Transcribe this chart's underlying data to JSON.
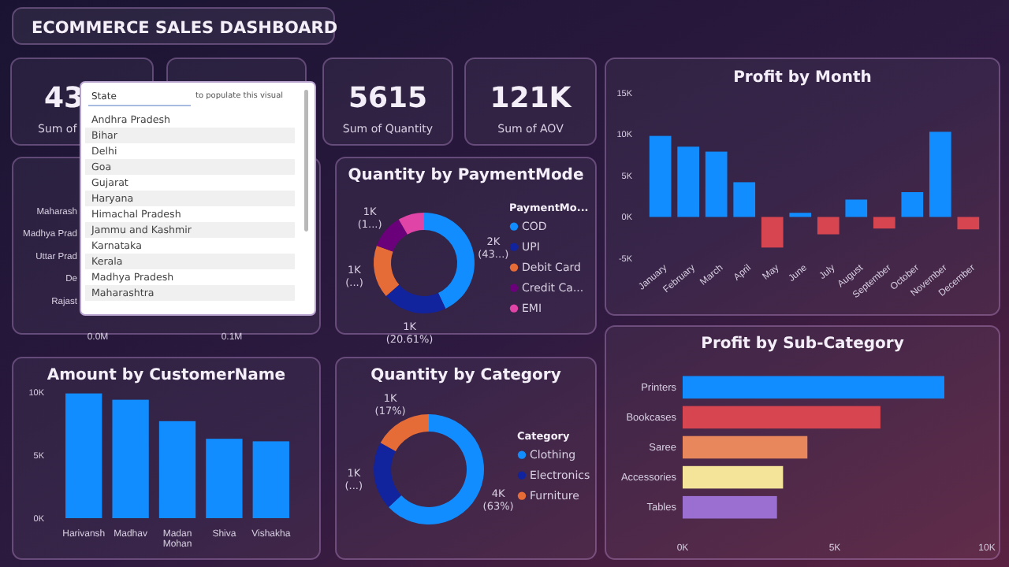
{
  "chart_data": [
    {
      "type": "other",
      "title": "ECOMMERCE SALES DASHBOARD"
    },
    {
      "type": "other",
      "title": "43",
      "subtitle": "Sum of"
    },
    {
      "type": "other",
      "title": "5615",
      "subtitle": "Sum of Quantity"
    },
    {
      "type": "other",
      "title": "121K",
      "subtitle": "Sum of AOV"
    },
    {
      "type": "bar",
      "title": "Profit by Month",
      "categories": [
        "January",
        "February",
        "March",
        "April",
        "May",
        "June",
        "July",
        "August",
        "September",
        "October",
        "November",
        "December"
      ],
      "values": [
        9800,
        8500,
        7900,
        4200,
        -3700,
        500,
        -2100,
        2100,
        -1400,
        3000,
        10300,
        -1500
      ],
      "colors": [
        "#118dff",
        "#118dff",
        "#118dff",
        "#118dff",
        "#d64550",
        "#118dff",
        "#d64550",
        "#118dff",
        "#d64550",
        "#118dff",
        "#118dff",
        "#d64550"
      ],
      "ylim": [
        -5000,
        15000
      ],
      "yticks": [
        {
          "value": -5000,
          "label": "-5K"
        },
        {
          "value": 0,
          "label": "0K"
        },
        {
          "value": 5000,
          "label": "5K"
        },
        {
          "value": 10000,
          "label": "10K"
        },
        {
          "value": 15000,
          "label": "15K"
        }
      ]
    },
    {
      "type": "bar",
      "orientation": "horizontal",
      "categories": [
        "Maharash",
        "Madhya Prad",
        "Uttar Prad",
        "De",
        "Rajast"
      ],
      "values": [
        null,
        null,
        null,
        null,
        null
      ],
      "xlim": [
        0,
        0.165
      ],
      "xticks": [
        {
          "value": 0,
          "label": "0.0M"
        },
        {
          "value": 0.1,
          "label": "0.1M"
        }
      ]
    },
    {
      "type": "donut",
      "title": "Quantity by PaymentMode",
      "legend_title": "PaymentMo...",
      "legend": "right",
      "categories": [
        "COD",
        "UPI",
        "Debit Card",
        "Credit Ca...",
        "EMI"
      ],
      "values": [
        2414,
        1157,
        955,
        618,
        471
      ],
      "colors": [
        "#118dff",
        "#12239e",
        "#e66c37",
        "#6b007b",
        "#e044a7"
      ],
      "value_labels": [
        "2K (43...)",
        "1K (20.61%)",
        "1K (...)",
        "1K (1...)",
        null
      ]
    },
    {
      "type": "bar",
      "title": "Amount by CustomerName",
      "categories": [
        "Harivansh",
        "Madhav",
        "Madan Mohan",
        "Shiva",
        "Vishakha"
      ],
      "values": [
        9900,
        9400,
        7700,
        6300,
        6100
      ],
      "colors": [
        "#118dff",
        "#118dff",
        "#118dff",
        "#118dff",
        "#118dff"
      ],
      "ylim": [
        0,
        10000
      ],
      "yticks": [
        {
          "value": 0,
          "label": "0K"
        },
        {
          "value": 5000,
          "label": "5K"
        },
        {
          "value": 10000,
          "label": "10K"
        }
      ]
    },
    {
      "type": "donut",
      "title": "Quantity by Category",
      "legend_title": "Category",
      "legend": "right",
      "categories": [
        "Clothing",
        "Electronics",
        "Furniture"
      ],
      "values": [
        3537,
        1123,
        955
      ],
      "colors": [
        "#118dff",
        "#12239e",
        "#e66c37"
      ],
      "value_labels": [
        "4K (63%)",
        "1K (...)",
        "1K (17%)"
      ]
    },
    {
      "type": "bar",
      "orientation": "horizontal",
      "title": "Profit by Sub-Category",
      "categories": [
        "Printers",
        "Bookcases",
        "Saree",
        "Accessories",
        "Tables"
      ],
      "values": [
        8600,
        6500,
        4100,
        3300,
        3100
      ],
      "colors": [
        "#118dff",
        "#d64550",
        "#e8875c",
        "#f3e49a",
        "#9b6fd1"
      ],
      "xlim": [
        0,
        10000
      ],
      "xticks": [
        {
          "value": 0,
          "label": "0K"
        },
        {
          "value": 5000,
          "label": "5K"
        },
        {
          "value": 10000,
          "label": "10K"
        }
      ]
    },
    {
      "type": "other",
      "title": "State",
      "annotations": [
        "to populate this visual",
        "Andhra Pradesh",
        "Bihar",
        "Delhi",
        "Goa",
        "Gujarat",
        "Haryana",
        "Himachal Pradesh",
        "Jammu and Kashmir",
        "Karnataka",
        "Kerala",
        "Madhya Pradesh",
        "Maharashtra"
      ]
    }
  ]
}
